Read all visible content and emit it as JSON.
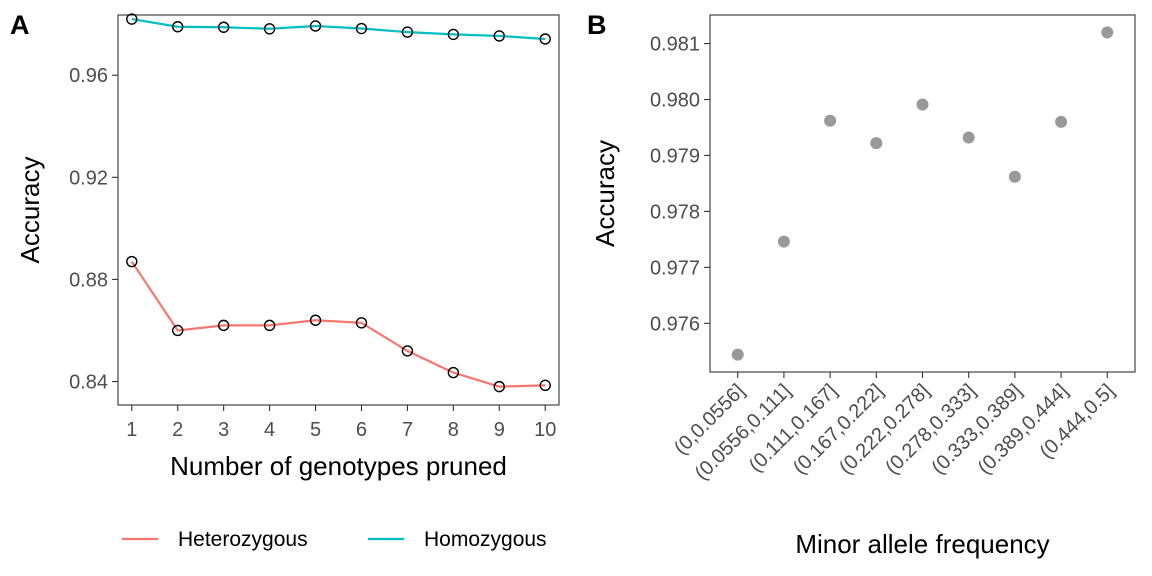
{
  "chart_data": [
    {
      "panel": "A",
      "type": "line",
      "xlabel": "Number of genotypes pruned",
      "ylabel": "Accuracy",
      "x": [
        1,
        2,
        3,
        4,
        5,
        6,
        7,
        8,
        9,
        10
      ],
      "xlim": [
        0.7,
        10.3
      ],
      "ylim": [
        0.8308,
        0.9836
      ],
      "yticks": [
        0.84,
        0.88,
        0.92,
        0.96
      ],
      "yticklabels": [
        "0.84",
        "0.88",
        "0.92",
        "0.96"
      ],
      "grid": false,
      "legend_position": "bottom",
      "series": [
        {
          "name": "Heterozygous",
          "color": "#F8766D",
          "values": [
            0.887,
            0.86,
            0.862,
            0.862,
            0.864,
            0.863,
            0.852,
            0.8435,
            0.838,
            0.8385
          ]
        },
        {
          "name": "Homozygous",
          "color": "#00BFC4",
          "values": [
            0.982,
            0.979,
            0.9788,
            0.9782,
            0.9793,
            0.9783,
            0.9769,
            0.976,
            0.9754,
            0.9742
          ]
        }
      ]
    },
    {
      "panel": "B",
      "type": "scatter",
      "xlabel": "Minor allele frequency",
      "ylabel": "Accuracy",
      "categories": [
        "(0,0.0556]",
        "(0.0556,0.111]",
        "(0.111,0.167]",
        "(0.167,0.222]",
        "(0.222,0.278]",
        "(0.278,0.333]",
        "(0.333,0.389]",
        "(0.389,0.444]",
        "(0.444,0.5]"
      ],
      "values": [
        0.97544,
        0.97746,
        0.97962,
        0.97922,
        0.97991,
        0.97932,
        0.97862,
        0.9796,
        0.9812
      ],
      "ylim": [
        0.97513,
        0.98151
      ],
      "yticks": [
        0.976,
        0.977,
        0.978,
        0.979,
        0.98,
        0.981
      ],
      "yticklabels": [
        "0.976",
        "0.977",
        "0.978",
        "0.979",
        "0.980",
        "0.981"
      ],
      "point_color": "#999999",
      "grid": false
    }
  ]
}
